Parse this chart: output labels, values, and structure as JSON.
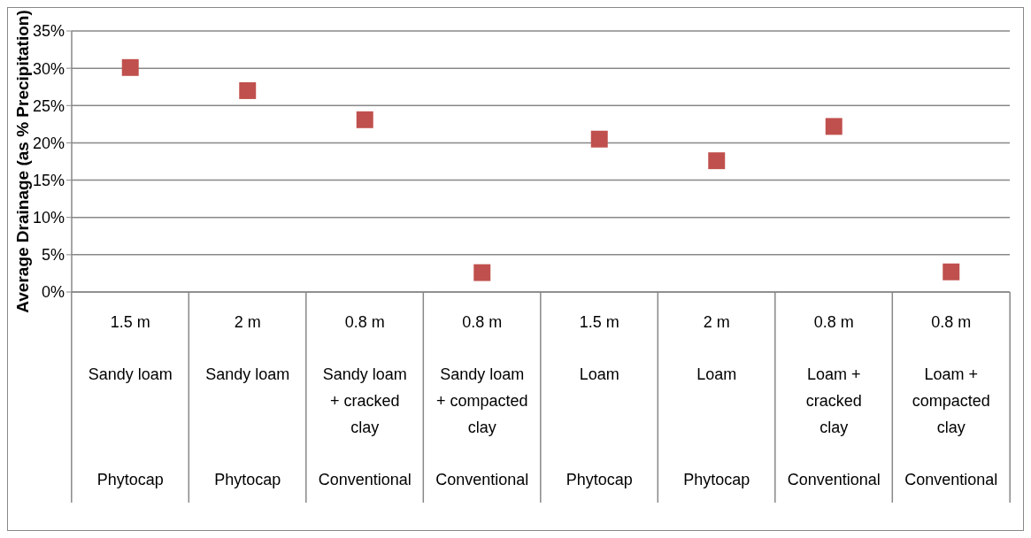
{
  "chart_data": {
    "type": "scatter",
    "ylabel": "Average Drainage (as % Precipitation)",
    "categories": [
      "1.5 m\nSandy loam\nPhytocap",
      "2 m\nSandy loam\nPhytocap",
      "0.8 m\nSandy loam + cracked clay\nConventional",
      "0.8 m\nSandy loam + compacted clay\nConventional",
      "1.5 m\nLoam\nPhytocap",
      "2 m\nLoam\nPhytocap",
      "0.8 m\nLoam + cracked clay\nConventional",
      "0.8 m\nLoam + compacted clay\nConventional"
    ],
    "values": [
      30.1,
      27,
      23.1,
      2.6,
      20.5,
      17.6,
      22.2,
      2.7
    ],
    "color": "#c0504d",
    "marker": "square",
    "ylim": [
      0,
      35
    ],
    "yticks": [
      {
        "value": 0,
        "label": "0%"
      },
      {
        "value": 5,
        "label": "5%"
      },
      {
        "value": 10,
        "label": "10%"
      },
      {
        "value": 15,
        "label": "15%"
      },
      {
        "value": 20,
        "label": "20%"
      },
      {
        "value": 25,
        "label": "25%"
      },
      {
        "value": 30,
        "label": "30%"
      },
      {
        "value": 35,
        "label": "35%"
      }
    ],
    "grid": "y"
  }
}
